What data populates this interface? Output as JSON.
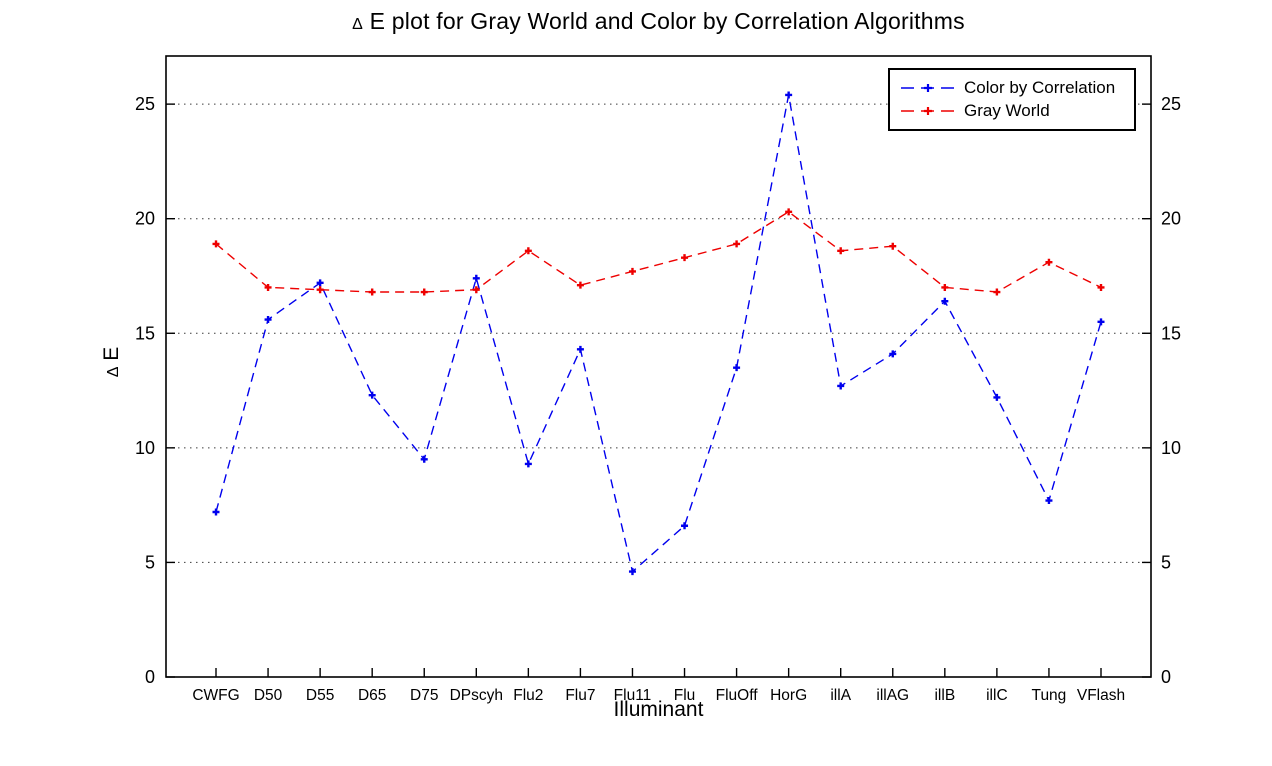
{
  "chart_data": {
    "type": "line",
    "title_delta": "Δ",
    "title_rest": " E plot for Gray World and Color by Correlation Algorithms",
    "xlabel": "Illuminant",
    "ylabel_delta": "Δ",
    "ylabel_rest": " E",
    "categories": [
      "CWFG",
      "D50",
      "D55",
      "D65",
      "D75",
      "DPscyh",
      "Flu2",
      "Flu7",
      "Flu11",
      "Flu",
      "FluOff",
      "HorG",
      "illA",
      "illAG",
      "illB",
      "illC",
      "Tung",
      "VFlash"
    ],
    "series": [
      {
        "id": "color-by-correlation",
        "name": "Color by Correlation",
        "color": "#0000ee",
        "values": [
          7.2,
          15.6,
          17.2,
          12.3,
          9.5,
          17.4,
          9.3,
          14.3,
          4.6,
          6.6,
          13.5,
          25.4,
          12.7,
          14.1,
          16.4,
          12.2,
          7.7,
          15.5
        ]
      },
      {
        "id": "gray-world",
        "name": "Gray World",
        "color": "#ee0000",
        "values": [
          18.9,
          17.0,
          16.9,
          16.8,
          16.8,
          16.9,
          18.6,
          17.1,
          17.7,
          18.3,
          18.9,
          20.3,
          18.6,
          18.8,
          17.0,
          16.8,
          18.1,
          17.0
        ]
      }
    ],
    "yticks": [
      0,
      5,
      10,
      15,
      20,
      25
    ],
    "ylim": [
      0,
      27.1
    ],
    "grid": "dotted horizontal",
    "legend_position": "top-right inside"
  }
}
